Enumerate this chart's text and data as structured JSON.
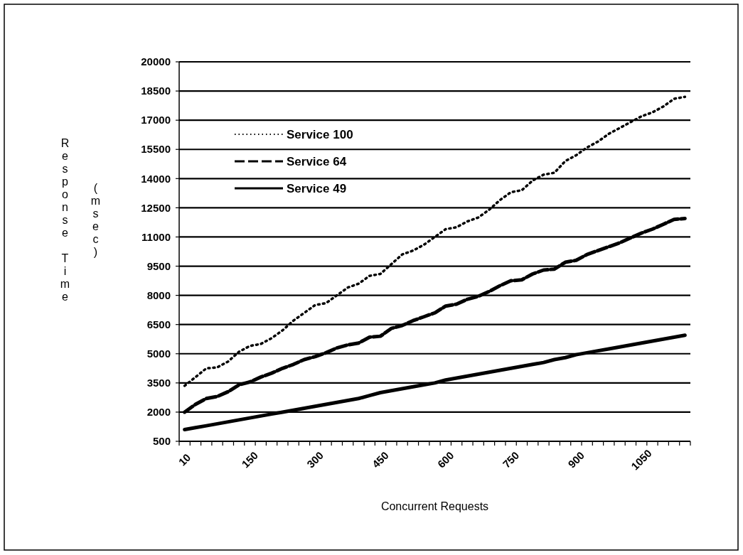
{
  "chart_data": {
    "type": "line",
    "xlabel": "Concurrent Requests",
    "ylabel": "Response Time (msec)",
    "categories": [
      "10",
      null,
      null,
      null,
      null,
      null,
      "150",
      null,
      null,
      null,
      null,
      null,
      "300",
      null,
      null,
      null,
      null,
      null,
      "450",
      null,
      null,
      null,
      null,
      null,
      "600",
      null,
      null,
      null,
      null,
      null,
      "750",
      null,
      null,
      null,
      null,
      null,
      "900",
      null,
      null,
      null,
      null,
      null,
      "1050",
      null,
      null,
      null,
      null
    ],
    "ylim": [
      500,
      20000
    ],
    "yticks": [
      500,
      2000,
      3500,
      5000,
      6500,
      8000,
      9500,
      11000,
      12500,
      14000,
      15500,
      17000,
      18500,
      20000
    ],
    "grid": "y",
    "legend": "top left",
    "marker": "none",
    "series": [
      {
        "name": "Service 100",
        "color": "#000000",
        "line_style": "dotted",
        "values": [
          3350,
          3800,
          4250,
          4300,
          4600,
          5100,
          5400,
          5500,
          5800,
          6200,
          6700,
          7100,
          7500,
          7600,
          8000,
          8400,
          8600,
          9000,
          9100,
          9600,
          10100,
          10300,
          10600,
          11000,
          11400,
          11500,
          11800,
          12000,
          12400,
          12900,
          13300,
          13400,
          13900,
          14200,
          14300,
          14900,
          15200,
          15600,
          15900,
          16300,
          16600,
          16900,
          17200,
          17400,
          17700,
          18100,
          18200
        ]
      },
      {
        "name": "Service 64",
        "color": "#000000",
        "line_style": "dashed",
        "values": [
          2000,
          2400,
          2700,
          2800,
          3050,
          3400,
          3550,
          3800,
          4000,
          4250,
          4450,
          4700,
          4850,
          5050,
          5300,
          5450,
          5550,
          5850,
          5900,
          6300,
          6450,
          6700,
          6900,
          7100,
          7450,
          7550,
          7800,
          7950,
          8200,
          8500,
          8750,
          8800,
          9100,
          9300,
          9350,
          9700,
          9800,
          10100,
          10300,
          10500,
          10700,
          10950,
          11200,
          11400,
          11650,
          11900,
          11950
        ]
      },
      {
        "name": "Service 49",
        "color": "#000000",
        "line_style": "solid",
        "values": [
          1100,
          1200,
          1300,
          1400,
          1500,
          1600,
          1700,
          1800,
          1900,
          2000,
          2100,
          2200,
          2300,
          2400,
          2500,
          2600,
          2700,
          2850,
          3000,
          3100,
          3200,
          3300,
          3400,
          3500,
          3650,
          3750,
          3850,
          3950,
          4050,
          4150,
          4250,
          4350,
          4450,
          4550,
          4700,
          4800,
          4950,
          5050,
          5150,
          5250,
          5350,
          5450,
          5550,
          5650,
          5750,
          5850,
          5950
        ]
      }
    ]
  }
}
